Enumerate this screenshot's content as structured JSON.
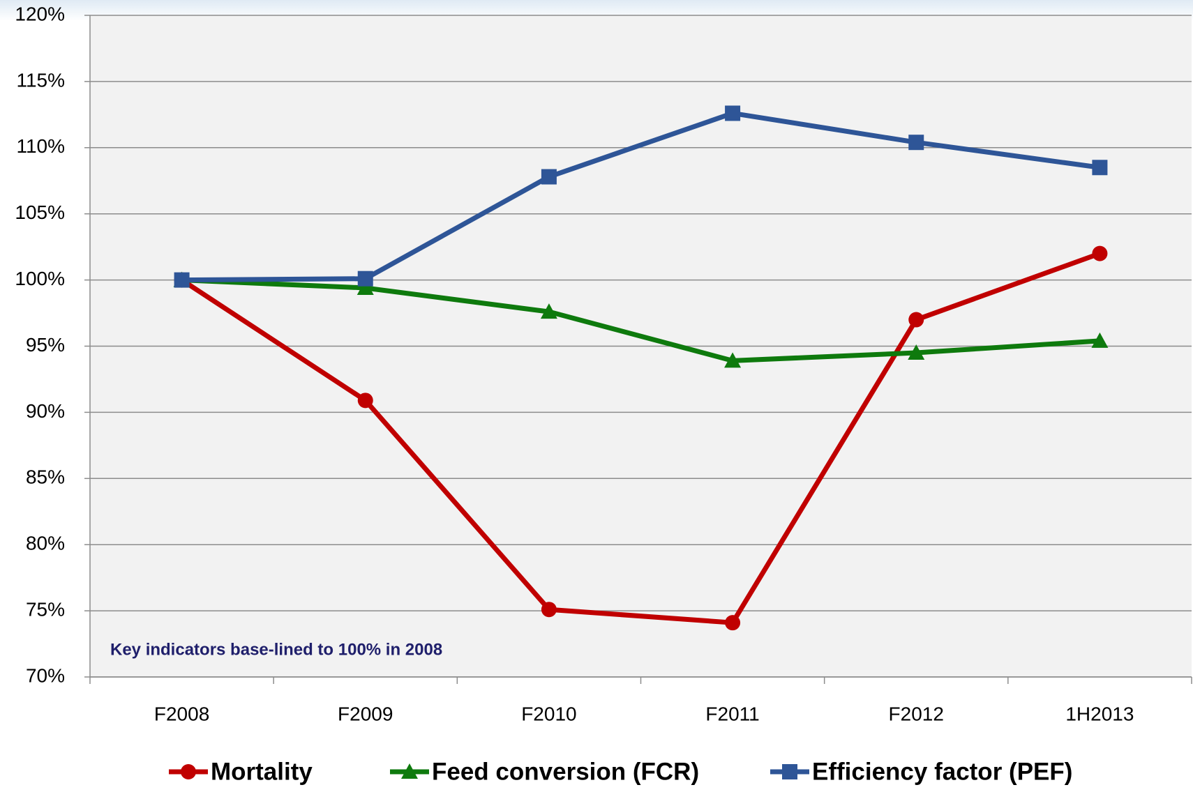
{
  "chart_data": {
    "type": "line",
    "annotation": "Key indicators base-lined  to  100% in 2008",
    "categories": [
      "F2008",
      "F2009",
      "F2010",
      "F2011",
      "F2012",
      "1H2013"
    ],
    "series": [
      {
        "name": "Mortality",
        "color": "#c00000",
        "marker": "circle",
        "values": [
          100,
          90.9,
          75.1,
          74.1,
          97,
          102
        ]
      },
      {
        "name": "Feed conversion (FCR)",
        "color": "#0e7a0d",
        "marker": "triangle",
        "values": [
          100,
          99.4,
          97.6,
          93.9,
          94.5,
          95.4
        ]
      },
      {
        "name": "Efficiency factor (PEF)",
        "color": "#2e5597",
        "marker": "square",
        "values": [
          100,
          100.1,
          107.8,
          112.6,
          110.4,
          108.5
        ]
      }
    ],
    "ylim": [
      70,
      120
    ],
    "yticks": [
      {
        "value": 70,
        "label": "70%"
      },
      {
        "value": 75,
        "label": "75%"
      },
      {
        "value": 80,
        "label": "80%"
      },
      {
        "value": 85,
        "label": "85%"
      },
      {
        "value": 90,
        "label": "90%"
      },
      {
        "value": 95,
        "label": "95%"
      },
      {
        "value": 100,
        "label": "100%"
      },
      {
        "value": 105,
        "label": "105%"
      },
      {
        "value": 110,
        "label": "110%"
      },
      {
        "value": 115,
        "label": "115%"
      },
      {
        "value": 120,
        "label": "120%"
      }
    ],
    "grid": true,
    "legend": "bottom"
  }
}
